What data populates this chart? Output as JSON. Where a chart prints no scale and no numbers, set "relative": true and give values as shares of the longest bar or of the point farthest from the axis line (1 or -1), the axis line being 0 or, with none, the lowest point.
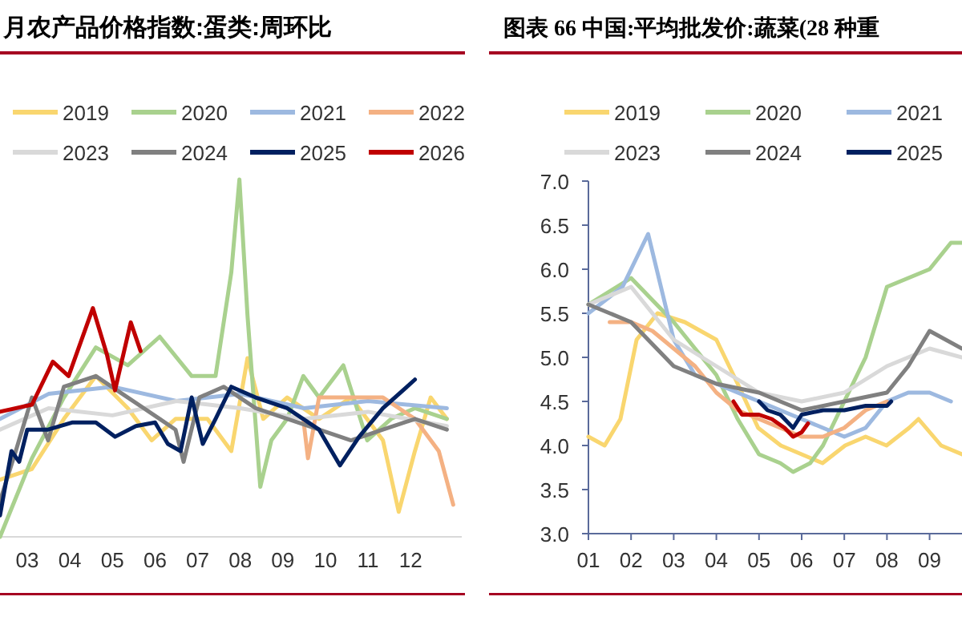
{
  "chart_data": [
    {
      "type": "line",
      "title": "月农产品价格指数:蛋类:周环比",
      "relative": true,
      "legend": "top",
      "xlim": [
        2.36,
        13.2
      ],
      "xticks": [
        {
          "value": 3,
          "label": "03"
        },
        {
          "value": 4,
          "label": "04"
        },
        {
          "value": 5,
          "label": "05"
        },
        {
          "value": 6,
          "label": "06"
        },
        {
          "value": 7,
          "label": "07"
        },
        {
          "value": 8,
          "label": "08"
        },
        {
          "value": 9,
          "label": "09"
        },
        {
          "value": 10,
          "label": "10"
        },
        {
          "value": 11,
          "label": "11"
        },
        {
          "value": 12,
          "label": "12"
        }
      ],
      "series": [
        {
          "name": "2019",
          "color": "#f9d66f",
          "x": [
            2.36,
            3.11,
            3.86,
            4.61,
            5.36,
            5.92,
            6.48,
            7.23,
            7.79,
            8.17,
            8.54,
            9.1,
            9.85,
            10.6,
            11.35,
            11.72,
            12.1,
            12.47,
            12.85
          ],
          "values": [
            0.16,
            0.19,
            0.33,
            0.45,
            0.36,
            0.27,
            0.33,
            0.33,
            0.24,
            0.5,
            0.33,
            0.39,
            0.33,
            0.39,
            0.27,
            0.07,
            0.24,
            0.39,
            0.33
          ]
        },
        {
          "name": "2020",
          "color": "#a9d18e",
          "x": [
            2.36,
            3.11,
            3.86,
            4.61,
            5.36,
            6.11,
            6.86,
            7.42,
            7.79,
            7.98,
            8.17,
            8.47,
            8.73,
            9.1,
            9.48,
            9.85,
            10.42,
            10.98,
            11.54,
            12.1,
            12.85
          ],
          "values": [
            0,
            0.22,
            0.39,
            0.53,
            0.48,
            0.56,
            0.45,
            0.45,
            0.74,
            1,
            0.62,
            0.14,
            0.27,
            0.33,
            0.45,
            0.39,
            0.48,
            0.27,
            0.33,
            0.36,
            0.33
          ]
        },
        {
          "name": "2021",
          "color": "#9db9e0",
          "x": [
            2.36,
            3.5,
            5,
            6.5,
            8,
            9.5,
            11,
            12.85
          ],
          "values": [
            0.33,
            0.4,
            0.42,
            0.38,
            0.4,
            0.36,
            0.38,
            0.36
          ]
        },
        {
          "name": "2022",
          "color": "#f4b183",
          "x": [
            9.48,
            9.59,
            9.85,
            10.6,
            11.35,
            12.1,
            12.66,
            13.0
          ],
          "values": [
            0.33,
            0.22,
            0.39,
            0.39,
            0.39,
            0.33,
            0.24,
            0.09
          ]
        },
        {
          "name": "2023",
          "color": "#d9d9d9",
          "x": [
            2.36,
            3.5,
            5,
            6.5,
            8,
            9.5,
            11,
            12.85
          ],
          "values": [
            0.3,
            0.36,
            0.34,
            0.38,
            0.36,
            0.33,
            0.35,
            0.31
          ]
        },
        {
          "name": "2024",
          "color": "#808080",
          "x": [
            2.36,
            2.73,
            3.11,
            3.49,
            3.86,
            4.61,
            5.36,
            6.11,
            6.48,
            6.67,
            7.04,
            7.61,
            8.36,
            9.85,
            10.6,
            11.35,
            12.1,
            12.85
          ],
          "values": [
            0.1,
            0.24,
            0.39,
            0.27,
            0.42,
            0.45,
            0.39,
            0.33,
            0.3,
            0.21,
            0.39,
            0.42,
            0.36,
            0.3,
            0.27,
            0.3,
            0.33,
            0.3
          ]
        },
        {
          "name": "2025",
          "color": "#002060",
          "x": [
            2.36,
            2.63,
            2.81,
            3.0,
            3.49,
            4.05,
            4.61,
            5.06,
            5.55,
            6.0,
            6.3,
            6.6,
            6.86,
            7.12,
            7.42,
            7.79,
            8.36,
            9.1,
            9.85,
            10.34,
            10.79,
            11.35,
            12.1
          ],
          "values": [
            0.06,
            0.24,
            0.21,
            0.3,
            0.3,
            0.32,
            0.32,
            0.28,
            0.31,
            0.32,
            0.26,
            0.24,
            0.39,
            0.26,
            0.33,
            0.42,
            0.39,
            0.36,
            0.3,
            0.2,
            0.28,
            0.36,
            0.44
          ]
        },
        {
          "name": "2026",
          "color": "#c00000",
          "x": [
            2.36,
            3.11,
            3.6,
            3.97,
            4.54,
            4.87,
            5.06,
            5.43,
            5.66
          ],
          "values": [
            0.35,
            0.37,
            0.49,
            0.45,
            0.64,
            0.51,
            0.41,
            0.6,
            0.52
          ]
        }
      ]
    },
    {
      "type": "line",
      "title": "图表 66 中国:平均批发价:蔬菜(28 种重",
      "legend": "top",
      "xlim": [
        1,
        9.76
      ],
      "xticks": [
        {
          "value": 1,
          "label": "01"
        },
        {
          "value": 2,
          "label": "02"
        },
        {
          "value": 3,
          "label": "03"
        },
        {
          "value": 4,
          "label": "04"
        },
        {
          "value": 5,
          "label": "05"
        },
        {
          "value": 6,
          "label": "06"
        },
        {
          "value": 7,
          "label": "07"
        },
        {
          "value": 8,
          "label": "08"
        },
        {
          "value": 9,
          "label": "09"
        }
      ],
      "ylim": [
        3.0,
        7.0
      ],
      "yticks": [
        {
          "value": 3,
          "label": "3.0"
        },
        {
          "value": 3.5,
          "label": "3.5"
        },
        {
          "value": 4,
          "label": "4.0"
        },
        {
          "value": 4.5,
          "label": "4.5"
        },
        {
          "value": 5,
          "label": "5.0"
        },
        {
          "value": 5.5,
          "label": "5.5"
        },
        {
          "value": 6,
          "label": "6.0"
        },
        {
          "value": 6.5,
          "label": "6.5"
        },
        {
          "value": 7,
          "label": "7.0"
        }
      ],
      "series": [
        {
          "name": "2019",
          "color": "#f9d66f",
          "x": [
            1.0,
            1.38,
            1.75,
            2.13,
            2.62,
            3.26,
            4.0,
            4.5,
            4.98,
            5.51,
            6.0,
            6.49,
            7.02,
            7.5,
            7.99,
            8.52,
            8.74,
            9.27,
            9.76
          ],
          "values": [
            4.1,
            4.0,
            4.3,
            5.2,
            5.5,
            5.4,
            5.2,
            4.7,
            4.2,
            4.0,
            3.9,
            3.8,
            4.0,
            4.1,
            4.0,
            4.2,
            4.3,
            4.0,
            3.9
          ]
        },
        {
          "name": "2020",
          "color": "#a9d18e",
          "x": [
            1.0,
            2.0,
            3.0,
            4.0,
            4.5,
            5.0,
            5.5,
            5.8,
            6.2,
            6.5,
            7.0,
            7.5,
            8.0,
            8.5,
            9.0,
            9.5,
            9.76
          ],
          "values": [
            5.6,
            5.9,
            5.4,
            4.8,
            4.3,
            3.9,
            3.8,
            3.7,
            3.8,
            4.0,
            4.5,
            5.0,
            5.8,
            5.9,
            6.0,
            6.3,
            6.3
          ]
        },
        {
          "name": "2021",
          "color": "#9db9e0",
          "x": [
            1.0,
            1.8,
            2.4,
            2.7,
            3.0,
            3.5,
            4.0,
            4.5,
            5.0,
            5.5,
            6.0,
            6.5,
            7.0,
            7.5,
            8.0,
            8.5,
            9.0,
            9.5
          ],
          "values": [
            5.5,
            5.8,
            6.4,
            5.8,
            5.2,
            4.8,
            4.7,
            4.6,
            4.5,
            4.4,
            4.3,
            4.2,
            4.1,
            4.2,
            4.5,
            4.6,
            4.6,
            4.5
          ]
        },
        {
          "color": "#f4b183",
          "x": [
            1.5,
            2.0,
            2.5,
            3.0,
            3.5,
            4.0,
            4.5,
            5.0,
            5.5,
            6.0,
            6.5,
            7.0,
            7.5,
            8.0
          ],
          "values": [
            5.4,
            5.4,
            5.3,
            5.1,
            4.9,
            4.6,
            4.4,
            4.3,
            4.2,
            4.1,
            4.1,
            4.2,
            4.4,
            4.5
          ]
        },
        {
          "name": "2023",
          "color": "#d9d9d9",
          "x": [
            1.0,
            2.0,
            3.0,
            4.0,
            5.0,
            6.0,
            7.0,
            8.0,
            9.0,
            9.76
          ],
          "values": [
            5.6,
            5.8,
            5.2,
            4.9,
            4.6,
            4.5,
            4.6,
            4.9,
            5.1,
            5.0
          ]
        },
        {
          "name": "2024",
          "color": "#808080",
          "x": [
            1.0,
            2.0,
            3.0,
            3.5,
            4.0,
            5.0,
            6.0,
            7.0,
            8.0,
            8.5,
            9.0,
            9.76
          ],
          "values": [
            5.6,
            5.4,
            4.9,
            4.8,
            4.7,
            4.6,
            4.4,
            4.5,
            4.6,
            4.9,
            5.3,
            5.1
          ]
        },
        {
          "name": "2025",
          "color": "#002060",
          "x": [
            5.0,
            5.2,
            5.5,
            5.8,
            6.0,
            6.5,
            7.0,
            7.5,
            8.0,
            8.1
          ],
          "values": [
            4.5,
            4.4,
            4.35,
            4.2,
            4.35,
            4.4,
            4.4,
            4.45,
            4.45,
            4.5
          ]
        },
        {
          "color": "#c00000",
          "x": [
            4.4,
            4.6,
            5.0,
            5.3,
            5.6,
            5.8,
            6.0,
            6.15
          ],
          "values": [
            4.5,
            4.35,
            4.35,
            4.3,
            4.2,
            4.1,
            4.15,
            4.25
          ]
        }
      ]
    }
  ]
}
